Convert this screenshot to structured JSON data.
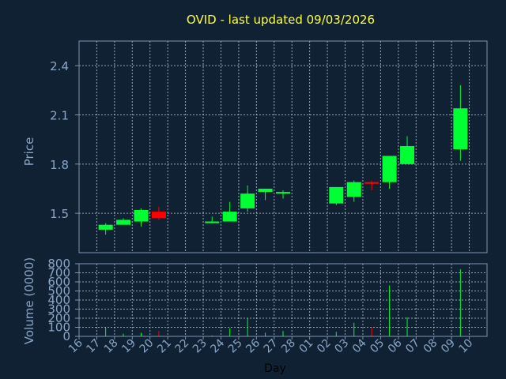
{
  "chart_data": [
    {
      "type": "candlestick",
      "title": "OVID - last updated 09/03/2026",
      "ylabel": "Price",
      "ylim": [
        1.26,
        2.55
      ],
      "yticks": [
        "1.5",
        "1.8",
        "2.1",
        "2.4"
      ],
      "ytick_values": [
        1.5,
        1.8,
        2.1,
        2.4
      ],
      "grid": true,
      "colors": {
        "up": "#00ff33",
        "down": "#ff0000",
        "background": "#0f2133",
        "text": "#8aa6c8",
        "title": "#ffff33"
      },
      "candles": [
        {
          "day": "17",
          "open": 1.4,
          "high": 1.44,
          "low": 1.37,
          "close": 1.43
        },
        {
          "day": "18",
          "open": 1.43,
          "high": 1.47,
          "low": 1.43,
          "close": 1.46
        },
        {
          "day": "19",
          "open": 1.45,
          "high": 1.53,
          "low": 1.42,
          "close": 1.52
        },
        {
          "day": "20",
          "open": 1.51,
          "high": 1.54,
          "low": 1.46,
          "close": 1.47
        },
        {
          "day": "23",
          "open": 1.44,
          "high": 1.48,
          "low": 1.44,
          "close": 1.45
        },
        {
          "day": "24",
          "open": 1.45,
          "high": 1.57,
          "low": 1.45,
          "close": 1.51
        },
        {
          "day": "25",
          "open": 1.53,
          "high": 1.67,
          "low": 1.51,
          "close": 1.62
        },
        {
          "day": "26",
          "open": 1.63,
          "high": 1.65,
          "low": 1.58,
          "close": 1.65
        },
        {
          "day": "27",
          "open": 1.62,
          "high": 1.64,
          "low": 1.59,
          "close": 1.63
        },
        {
          "day": "02",
          "open": 1.56,
          "high": 1.66,
          "low": 1.55,
          "close": 1.66
        },
        {
          "day": "03",
          "open": 1.6,
          "high": 1.7,
          "low": 1.57,
          "close": 1.69
        },
        {
          "day": "04",
          "open": 1.69,
          "high": 1.7,
          "low": 1.64,
          "close": 1.68
        },
        {
          "day": "05",
          "open": 1.69,
          "high": 1.85,
          "low": 1.65,
          "close": 1.85
        },
        {
          "day": "06",
          "open": 1.8,
          "high": 1.97,
          "low": 1.8,
          "close": 1.91
        },
        {
          "day": "09",
          "open": 1.89,
          "high": 2.28,
          "low": 1.82,
          "close": 2.14
        }
      ]
    },
    {
      "type": "bar",
      "ylabel": "Volume (0000)",
      "ylim": [
        0,
        800
      ],
      "yticks": [
        "0",
        "100",
        "200",
        "300",
        "400",
        "500",
        "600",
        "700",
        "800"
      ],
      "ytick_values": [
        0,
        100,
        200,
        300,
        400,
        500,
        600,
        700,
        800
      ],
      "xlabel": "Day",
      "xticks": [
        "16",
        "17",
        "18",
        "19",
        "20",
        "21",
        "22",
        "23",
        "24",
        "25",
        "26",
        "27",
        "28",
        "01",
        "02",
        "03",
        "04",
        "05",
        "06",
        "07",
        "08",
        "09",
        "10"
      ],
      "grid": true,
      "values": [
        {
          "day": "17",
          "value": 100,
          "up": true
        },
        {
          "day": "18",
          "value": 30,
          "up": true
        },
        {
          "day": "19",
          "value": 40,
          "up": true
        },
        {
          "day": "20",
          "value": 60,
          "up": false
        },
        {
          "day": "23",
          "value": 10,
          "up": true
        },
        {
          "day": "24",
          "value": 90,
          "up": true
        },
        {
          "day": "25",
          "value": 200,
          "up": true
        },
        {
          "day": "26",
          "value": 40,
          "up": true
        },
        {
          "day": "27",
          "value": 60,
          "up": true
        },
        {
          "day": "02",
          "value": 50,
          "up": true
        },
        {
          "day": "03",
          "value": 150,
          "up": true
        },
        {
          "day": "04",
          "value": 100,
          "up": false
        },
        {
          "day": "05",
          "value": 560,
          "up": true
        },
        {
          "day": "06",
          "value": 210,
          "up": true
        },
        {
          "day": "09",
          "value": 740,
          "up": true
        }
      ]
    }
  ]
}
